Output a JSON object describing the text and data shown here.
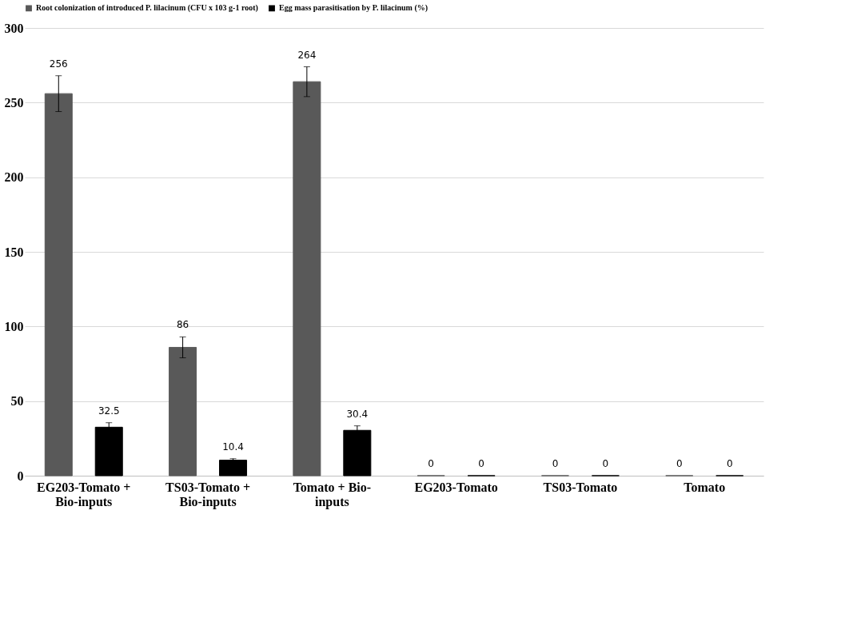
{
  "chart_data": {
    "type": "bar",
    "categories": [
      "EG203-Tomato + Bio-inputs",
      "TS03-Tomato + Bio-inputs",
      "Tomato + Bio-inputs",
      "EG203-Tomato",
      "TS03-Tomato",
      "Tomato"
    ],
    "series": [
      {
        "name": "Root colonization of introduced P. lilacinum (CFU x 103 g-1 root)",
        "color": "#595959",
        "values": [
          256,
          86,
          264,
          0,
          0,
          0
        ],
        "errors": [
          12,
          7,
          10,
          null,
          null,
          null
        ]
      },
      {
        "name": "Egg mass parasitisation by P. lilacinum (%)",
        "color": "#000000",
        "values": [
          32.5,
          10.4,
          30.4,
          0,
          0,
          0
        ],
        "errors": [
          3,
          1,
          3,
          null,
          null,
          null
        ]
      }
    ],
    "ylim": [
      0,
      300
    ],
    "yticks": [
      0,
      50,
      100,
      150,
      200,
      250,
      300
    ],
    "grid": "y",
    "legend": "top",
    "data_labels": true
  }
}
